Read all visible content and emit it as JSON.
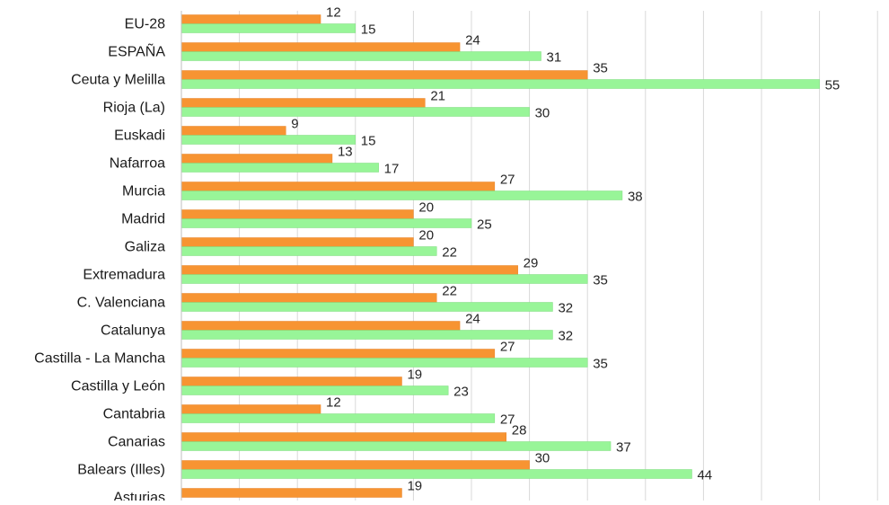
{
  "chart_data": {
    "type": "bar",
    "orientation": "horizontal",
    "title": "",
    "xlabel": "",
    "ylabel": "",
    "grid": true,
    "legend": "none",
    "categories": [
      "EU-28",
      "ESPAÑA",
      "Ceuta y Melilla",
      "Rioja (La)",
      "Euskadi",
      "Nafarroa",
      "Murcia",
      "Madrid",
      "Galiza",
      "Extremadura",
      "C. Valenciana",
      "Catalunya",
      "Castilla - La Mancha",
      "Castilla y León",
      "Cantabria",
      "Canarias",
      "Balears (Illes)",
      "Asturias"
    ],
    "series": [
      {
        "color": "#f79432",
        "values": [
          12,
          24,
          35,
          21,
          9,
          13,
          27,
          20,
          20,
          29,
          22,
          24,
          27,
          19,
          12,
          28,
          30,
          19
        ]
      },
      {
        "color": "#98f598",
        "values": [
          15,
          31,
          55,
          30,
          15,
          17,
          38,
          25,
          22,
          35,
          32,
          32,
          35,
          23,
          27,
          37,
          44,
          null
        ]
      }
    ],
    "xlim": [
      0,
      60
    ]
  }
}
